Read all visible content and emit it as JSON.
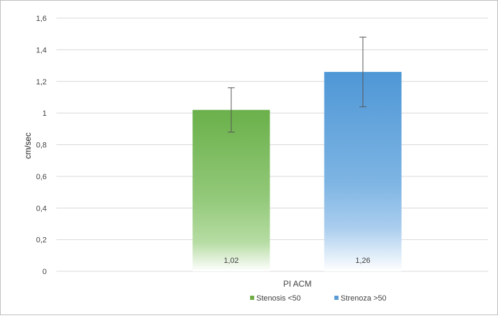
{
  "chart_data": {
    "type": "bar",
    "categories": [
      "PI ACM"
    ],
    "xlabel": "PI ACM",
    "ylabel": "cm/sec",
    "ylim": [
      0,
      1.6
    ],
    "yticks": [
      "0",
      "0,2",
      "0,4",
      "0,6",
      "0,8",
      "1",
      "1,2",
      "1,4",
      "1,6"
    ],
    "grid": true,
    "legend": "bottom",
    "series": [
      {
        "name": "Stenosis <50",
        "value": 1.02,
        "label": "1,02",
        "error_low": 0.88,
        "error_high": 1.16,
        "color": "#70ad47"
      },
      {
        "name": "Strenoza >50",
        "value": 1.26,
        "label": "1,26",
        "error_low": 1.04,
        "error_high": 1.48,
        "color": "#5b9bd5"
      }
    ]
  }
}
